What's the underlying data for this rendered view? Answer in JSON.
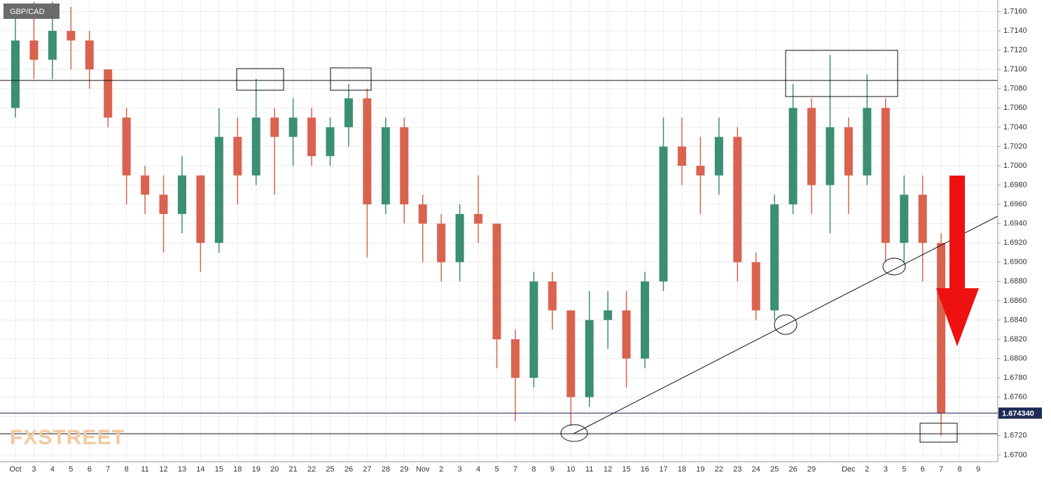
{
  "chart_data": {
    "type": "candlestick",
    "title": "GBP/CAD",
    "watermark": "FXSTREET",
    "categories": [
      "Oct",
      "3",
      "4",
      "5",
      "6",
      "7",
      "8",
      "11",
      "12",
      "13",
      "14",
      "15",
      "18",
      "19",
      "20",
      "21",
      "22",
      "25",
      "26",
      "27",
      "28",
      "29",
      "Nov",
      "2",
      "3",
      "4",
      "5",
      "7",
      "8",
      "9",
      "10",
      "11",
      "12",
      "15",
      "16",
      "17",
      "18",
      "19",
      "22",
      "23",
      "24",
      "25",
      "26",
      "29",
      null,
      "Dec",
      "2",
      "3",
      "5",
      "6",
      "7",
      "8",
      "9"
    ],
    "open": [
      1.706,
      1.713,
      1.711,
      1.714,
      1.713,
      1.71,
      1.705,
      1.699,
      1.697,
      1.695,
      1.699,
      1.692,
      1.703,
      1.699,
      1.705,
      1.703,
      1.705,
      1.701,
      1.704,
      1.707,
      1.696,
      1.704,
      1.696,
      1.694,
      1.69,
      1.695,
      1.694,
      1.682,
      1.678,
      1.688,
      1.685,
      1.676,
      1.684,
      1.685,
      1.68,
      1.688,
      1.702,
      1.7,
      1.699,
      1.703,
      1.69,
      1.685,
      1.696,
      1.706,
      1.698,
      1.704,
      1.699,
      1.706,
      1.692,
      1.697,
      1.692,
      null,
      null
    ],
    "high": [
      1.716,
      1.717,
      1.717,
      1.7165,
      1.714,
      1.71,
      1.706,
      1.7,
      1.699,
      1.701,
      1.699,
      1.706,
      1.705,
      1.709,
      1.706,
      1.707,
      1.706,
      1.705,
      1.7085,
      1.708,
      1.705,
      1.705,
      1.697,
      1.695,
      1.696,
      1.699,
      1.694,
      1.683,
      1.689,
      1.689,
      1.685,
      1.687,
      1.687,
      1.687,
      1.689,
      1.705,
      1.705,
      1.703,
      1.705,
      1.704,
      1.691,
      1.697,
      1.7085,
      1.707,
      1.7115,
      1.705,
      1.7095,
      1.707,
      1.699,
      1.699,
      1.693,
      null,
      null
    ],
    "low": [
      1.705,
      1.709,
      1.709,
      1.71,
      1.708,
      1.704,
      1.696,
      1.695,
      1.691,
      1.693,
      1.689,
      1.691,
      1.696,
      1.698,
      1.697,
      1.7,
      1.7,
      1.7,
      1.702,
      1.6905,
      1.695,
      1.694,
      1.69,
      1.688,
      1.688,
      1.692,
      1.679,
      1.6735,
      1.677,
      1.683,
      1.673,
      1.675,
      1.681,
      1.677,
      1.679,
      1.687,
      1.698,
      1.695,
      1.697,
      1.688,
      1.684,
      1.684,
      1.695,
      1.695,
      1.693,
      1.695,
      1.698,
      1.69,
      1.69,
      1.688,
      1.672,
      null,
      null
    ],
    "close": [
      1.713,
      1.711,
      1.714,
      1.713,
      1.71,
      1.705,
      1.699,
      1.697,
      1.695,
      1.699,
      1.692,
      1.703,
      1.699,
      1.705,
      1.703,
      1.705,
      1.701,
      1.704,
      1.707,
      1.696,
      1.704,
      1.696,
      1.694,
      1.69,
      1.695,
      1.694,
      1.682,
      1.678,
      1.688,
      1.685,
      1.676,
      1.684,
      1.685,
      1.68,
      1.688,
      1.702,
      1.7,
      1.699,
      1.703,
      1.69,
      1.685,
      1.696,
      1.706,
      1.698,
      1.704,
      1.699,
      1.706,
      1.692,
      1.697,
      1.692,
      1.6743,
      null,
      null
    ],
    "up_color": "#3a8f74",
    "down_color": "#d9634f",
    "last_price": {
      "value": 1.67434,
      "label": "1.674340"
    },
    "ylim": [
      1.6693,
      1.7172
    ],
    "yticks": [
      {
        "value": 1.67,
        "label": "1.6700"
      },
      {
        "value": 1.672,
        "label": "1.6720"
      },
      {
        "value": 1.674,
        "label": "1.6740"
      },
      {
        "value": 1.676,
        "label": "1.6760"
      },
      {
        "value": 1.678,
        "label": "1.6780"
      },
      {
        "value": 1.68,
        "label": "1.6800"
      },
      {
        "value": 1.682,
        "label": "1.6820"
      },
      {
        "value": 1.684,
        "label": "1.6840"
      },
      {
        "value": 1.686,
        "label": "1.6860"
      },
      {
        "value": 1.688,
        "label": "1.6880"
      },
      {
        "value": 1.69,
        "label": "1.6900"
      },
      {
        "value": 1.692,
        "label": "1.6920"
      },
      {
        "value": 1.694,
        "label": "1.6940"
      },
      {
        "value": 1.696,
        "label": "1.6960"
      },
      {
        "value": 1.698,
        "label": "1.6980"
      },
      {
        "value": 1.7,
        "label": "1.7000"
      },
      {
        "value": 1.702,
        "label": "1.7020"
      },
      {
        "value": 1.704,
        "label": "1.7040"
      },
      {
        "value": 1.706,
        "label": "1.7060"
      },
      {
        "value": 1.708,
        "label": "1.7080"
      },
      {
        "value": 1.71,
        "label": "1.7100"
      },
      {
        "value": 1.712,
        "label": "1.7120"
      },
      {
        "value": 1.714,
        "label": "1.7140"
      },
      {
        "value": 1.716,
        "label": "1.7160"
      }
    ],
    "grid": true
  }
}
